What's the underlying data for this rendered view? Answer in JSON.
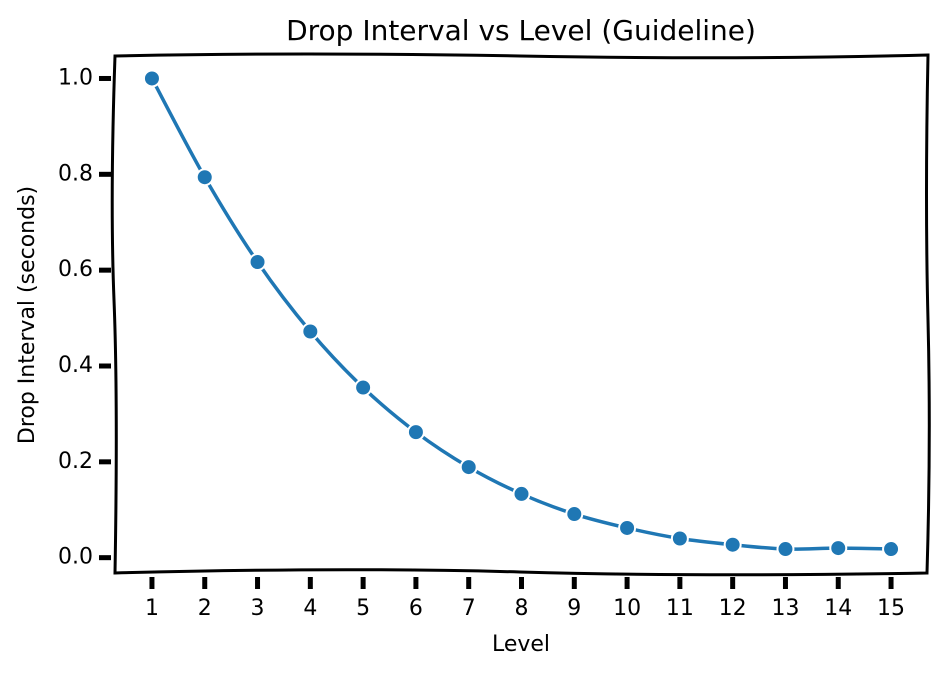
{
  "chart_data": {
    "type": "line",
    "title": "Drop Interval vs Level (Guideline)",
    "x_label": "Level",
    "y_label": "Drop Interval (seconds)",
    "x": [
      1,
      2,
      3,
      4,
      5,
      6,
      7,
      8,
      9,
      10,
      11,
      12,
      13,
      14,
      15
    ],
    "series": [
      {
        "name": "Drop Interval",
        "color": "#1f77b4",
        "values": [
          1.0,
          0.794,
          0.617,
          0.472,
          0.355,
          0.262,
          0.189,
          0.133,
          0.091,
          0.062,
          0.04,
          0.027,
          0.018,
          0.02,
          0.018
        ]
      }
    ],
    "xlim": [
      0.3,
      15.7
    ],
    "xticks": [
      1,
      2,
      3,
      4,
      5,
      6,
      7,
      8,
      9,
      10,
      11,
      12,
      13,
      14,
      15
    ],
    "ylim": [
      -0.032,
      1.049
    ],
    "yticks": [
      {
        "value": 0,
        "label": "0.0"
      },
      0.2,
      0.4,
      0.6,
      0.8,
      {
        "value": 1,
        "label": "1.0"
      }
    ],
    "grid": false
  }
}
